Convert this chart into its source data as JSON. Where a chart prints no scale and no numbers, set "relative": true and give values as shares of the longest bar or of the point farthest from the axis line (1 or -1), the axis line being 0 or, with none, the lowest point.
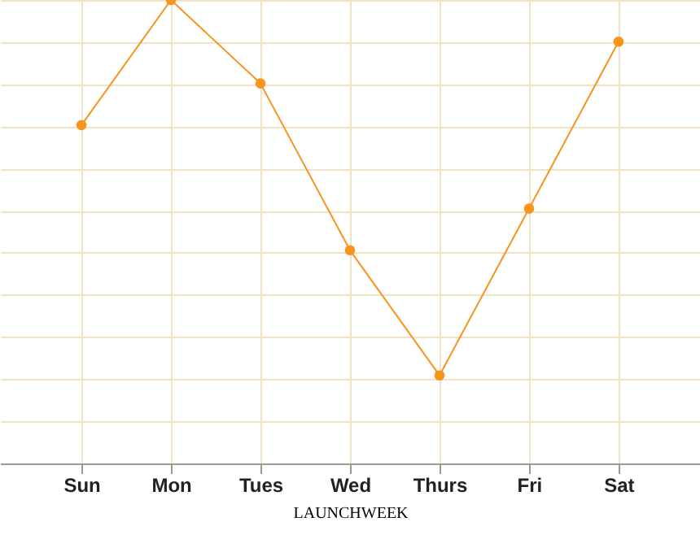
{
  "chart_data": {
    "type": "line",
    "xlabel": "LAUNCHWEEK",
    "relative": true,
    "categories": [
      "Sun",
      "Mon",
      "Tues",
      "Wed",
      "Thurs",
      "Fri",
      "Sat"
    ],
    "series": [
      {
        "color": "#f7941d",
        "values": [
          0.73,
          1,
          0.82,
          0.46,
          0.19,
          0.55,
          0.91
        ]
      }
    ],
    "grid": true,
    "marker": "circle",
    "line_style": "solid"
  }
}
